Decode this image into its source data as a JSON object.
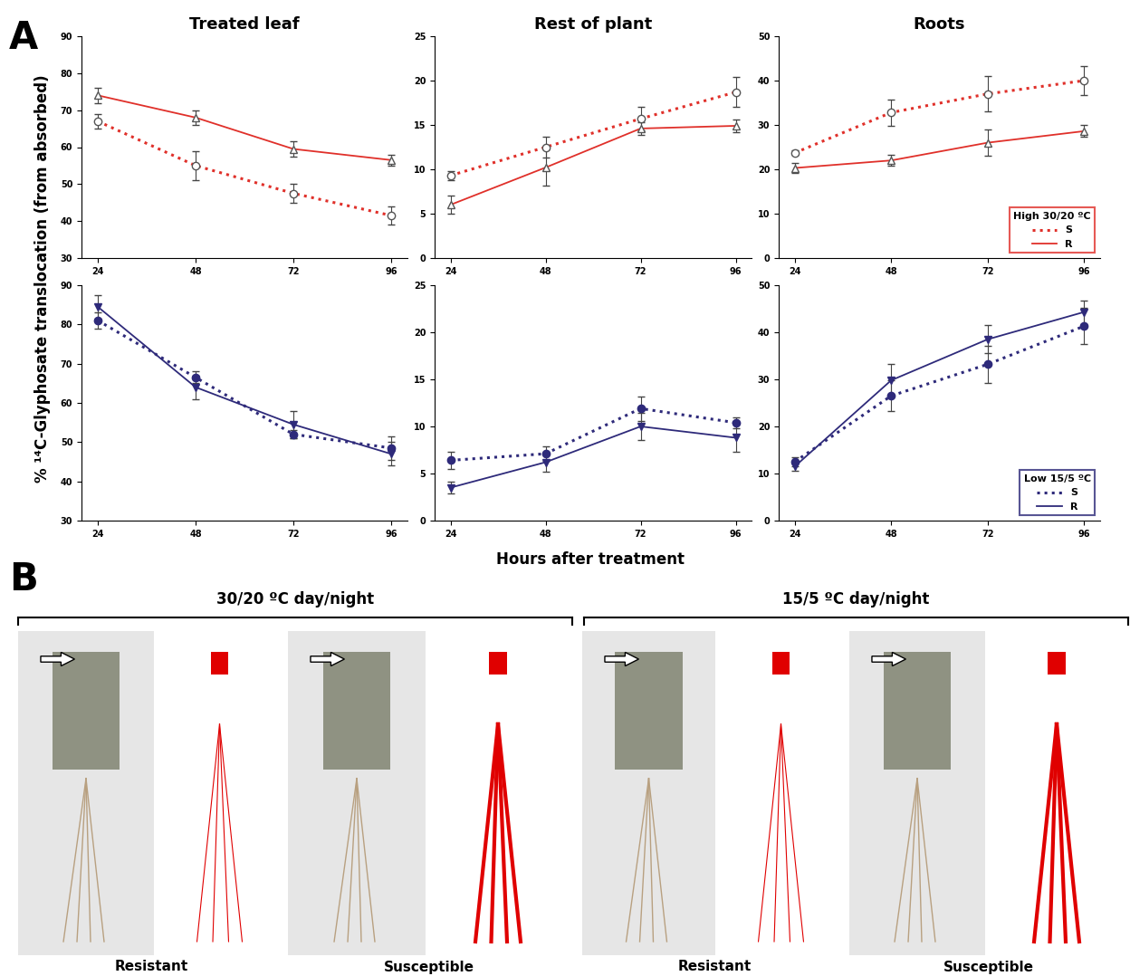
{
  "figure": {
    "panel_labels": [
      "A",
      "B"
    ],
    "ylabel": "% ¹⁴C-Glyphosate translocation (from absorbed)",
    "xlabel": "Hours after treatment"
  },
  "chart_data": [
    {
      "type": "line",
      "title": "Treated leaf",
      "x": [
        24,
        48,
        72,
        96
      ],
      "xlim": [
        20,
        100
      ],
      "xticks": [
        24,
        48,
        72,
        96
      ],
      "ylim": [
        30,
        90
      ],
      "yticks": [
        30,
        40,
        50,
        60,
        70,
        80,
        90
      ],
      "series": [
        {
          "name": "S",
          "color": "#e0302a",
          "line_style": "dotted",
          "marker": "open_circle",
          "values": [
            67,
            55,
            47.5,
            41.5
          ],
          "errors": [
            2,
            4,
            2.5,
            2.5
          ]
        },
        {
          "name": "R",
          "color": "#e0302a",
          "line_style": "solid",
          "marker": "open_triangle_up",
          "values": [
            74,
            68,
            59.5,
            56.5
          ],
          "errors": [
            2,
            2,
            2,
            1.5
          ]
        }
      ]
    },
    {
      "type": "line",
      "title": "Rest of plant",
      "x": [
        24,
        48,
        72,
        96
      ],
      "xlim": [
        20,
        100
      ],
      "xticks": [
        24,
        48,
        72,
        96
      ],
      "ylim": [
        0,
        25
      ],
      "yticks": [
        0,
        5,
        10,
        15,
        20,
        25
      ],
      "series": [
        {
          "name": "S",
          "color": "#e0302a",
          "line_style": "dotted",
          "marker": "open_circle",
          "values": [
            9.3,
            12.5,
            15.7,
            18.7
          ],
          "errors": [
            0.5,
            1.2,
            1.3,
            1.7
          ]
        },
        {
          "name": "R",
          "color": "#e0302a",
          "line_style": "solid",
          "marker": "open_triangle_up",
          "values": [
            6,
            10.2,
            14.6,
            14.9
          ],
          "errors": [
            1,
            2,
            0.7,
            0.7
          ]
        }
      ]
    },
    {
      "type": "line",
      "title": "Roots",
      "x": [
        24,
        48,
        72,
        96
      ],
      "xlim": [
        20,
        100
      ],
      "xticks": [
        24,
        48,
        72,
        96
      ],
      "ylim": [
        0,
        50
      ],
      "yticks": [
        0,
        10,
        20,
        30,
        40,
        50
      ],
      "legend": "lower right",
      "legend_title": "High 30/20 ºC",
      "series": [
        {
          "name": "S",
          "color": "#e0302a",
          "line_style": "dotted",
          "marker": "open_circle",
          "values": [
            23.7,
            32.8,
            37,
            40
          ],
          "errors": [
            0.5,
            3,
            4,
            3.3
          ]
        },
        {
          "name": "R",
          "color": "#e0302a",
          "line_style": "solid",
          "marker": "open_triangle_up",
          "values": [
            20.3,
            22,
            26,
            28.6
          ],
          "errors": [
            1.2,
            1.2,
            3,
            1.3
          ]
        }
      ]
    },
    {
      "type": "line",
      "x": [
        24,
        48,
        72,
        96
      ],
      "xlim": [
        20,
        100
      ],
      "xticks": [
        24,
        48,
        72,
        96
      ],
      "ylim": [
        30,
        90
      ],
      "yticks": [
        30,
        40,
        50,
        60,
        70,
        80,
        90
      ],
      "series": [
        {
          "name": "S",
          "color": "#2e2a7a",
          "line_style": "dotted",
          "marker": "circle",
          "values": [
            81,
            66.5,
            52,
            48.5
          ],
          "errors": [
            2,
            1.5,
            1,
            3
          ]
        },
        {
          "name": "R",
          "color": "#2e2a7a",
          "line_style": "solid",
          "marker": "triangle_down",
          "values": [
            84.5,
            64,
            54.5,
            47
          ],
          "errors": [
            3,
            3,
            3.5,
            3
          ]
        }
      ]
    },
    {
      "type": "line",
      "x": [
        24,
        48,
        72,
        96
      ],
      "xlim": [
        20,
        100
      ],
      "xticks": [
        24,
        48,
        72,
        96
      ],
      "ylim": [
        0,
        25
      ],
      "yticks": [
        0,
        5,
        10,
        15,
        20,
        25
      ],
      "series": [
        {
          "name": "S",
          "color": "#2e2a7a",
          "line_style": "dotted",
          "marker": "circle",
          "values": [
            6.4,
            7.1,
            11.9,
            10.4
          ],
          "errors": [
            0.9,
            0.8,
            1.3,
            0.6
          ]
        },
        {
          "name": "R",
          "color": "#2e2a7a",
          "line_style": "solid",
          "marker": "triangle_down",
          "values": [
            3.5,
            6.2,
            10,
            8.8
          ],
          "errors": [
            0.6,
            1,
            1.4,
            1.5
          ]
        }
      ]
    },
    {
      "type": "line",
      "x": [
        24,
        48,
        72,
        96
      ],
      "xlim": [
        20,
        100
      ],
      "xticks": [
        24,
        48,
        72,
        96
      ],
      "ylim": [
        0,
        50
      ],
      "yticks": [
        0,
        10,
        20,
        30,
        40,
        50
      ],
      "legend": "lower right",
      "legend_title": "Low 15/5 ºC",
      "series": [
        {
          "name": "S",
          "color": "#2e2a7a",
          "line_style": "dotted",
          "marker": "circle",
          "values": [
            12.5,
            26.5,
            33.2,
            41.3
          ],
          "errors": [
            1,
            3.3,
            4,
            3.8
          ]
        },
        {
          "name": "R",
          "color": "#2e2a7a",
          "line_style": "solid",
          "marker": "triangle_down",
          "values": [
            11.5,
            29.8,
            38.5,
            44.3
          ],
          "errors": [
            1,
            3.5,
            3,
            2.5
          ]
        }
      ]
    }
  ],
  "photos": {
    "groups": [
      {
        "title": "30/20 ºC day/night",
        "labels": [
          "Resistant",
          "Susceptible"
        ]
      },
      {
        "title": "15/5 ºC day/night",
        "labels": [
          "Resistant",
          "Susceptible"
        ]
      }
    ]
  }
}
